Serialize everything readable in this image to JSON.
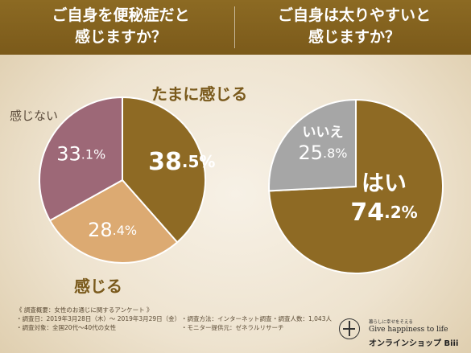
{
  "headers": {
    "left": "ご自身を便秘症だと\n感じますか？",
    "right": "ご自身は太りやすいと\n感じますか？"
  },
  "chart_data": [
    {
      "type": "pie",
      "title": "ご自身を便秘症だと感じますか？",
      "slices": [
        {
          "label": "たまに感じる",
          "value": 38.5,
          "color": "#8e6a24",
          "text_color": "#ffffff"
        },
        {
          "label": "感じる",
          "value": 28.4,
          "color": "#dcaa72",
          "text_color": "#ffffff"
        },
        {
          "label": "感じない",
          "value": 33.1,
          "color": "#9d6877",
          "text_color": "#ffffff"
        }
      ]
    },
    {
      "type": "pie",
      "title": "ご自身は太りやすいと感じますか？",
      "slices": [
        {
          "label": "はい",
          "value": 74.2,
          "color": "#8e6a24",
          "text_color": "#ffffff"
        },
        {
          "label": "いいえ",
          "value": 25.8,
          "color": "#a6a6a6",
          "text_color": "#ffffff"
        }
      ]
    }
  ],
  "labels": {
    "tamani": "たまに感じる",
    "kanjinai": "感じない",
    "kanjiru": "感じる"
  },
  "footer": {
    "title": "《 調査概要：女性のお通じに関するアンケート 》",
    "date": "・調査日：2019年3月28日（木）〜 2019年3月29日（金）",
    "method": "・調査方法：インターネット調査",
    "count": "・調査人数：1,043人",
    "target": "・調査対象：全国20代〜40代の女性",
    "monitor": "・モニター提供元：ゼネラルリサーチ"
  },
  "brand": {
    "small": "暮らしに幸せをそえる",
    "tagline": "Give happiness to life",
    "shop": "オンラインショップ Biii"
  }
}
